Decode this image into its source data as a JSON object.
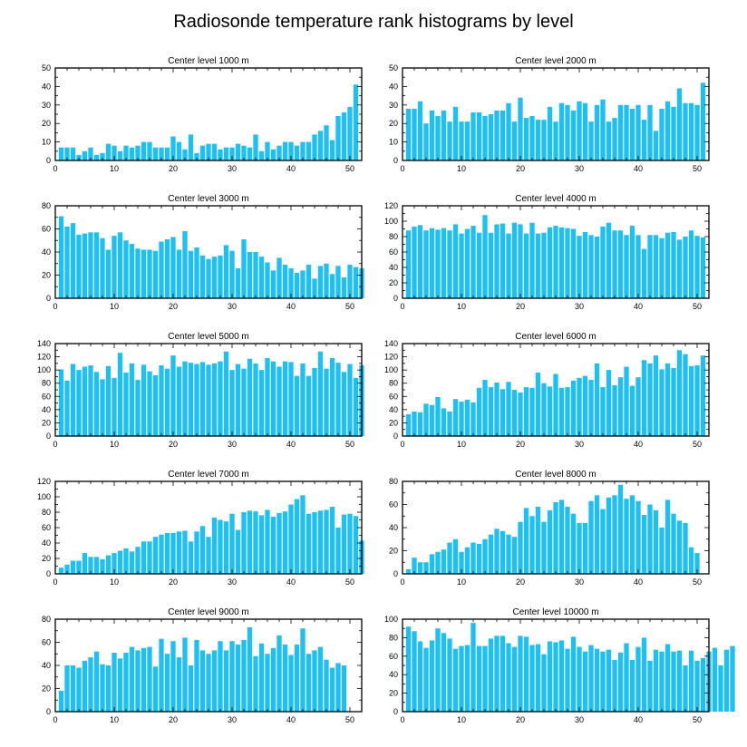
{
  "figure_title": "Radiosonde temperature rank histograms by level",
  "colors": {
    "bar": "#1cc0f5",
    "axis": "#000000",
    "background": "#ffffff"
  },
  "chart_data": [
    {
      "type": "bar",
      "title": "Center level 1000 m",
      "xlim": [
        0,
        52
      ],
      "ylim": [
        0,
        50
      ],
      "xticks": [
        0,
        10,
        20,
        30,
        40,
        50
      ],
      "yticks": [
        0,
        10,
        20,
        30,
        40,
        50
      ],
      "values": [
        7,
        7,
        7,
        3,
        5,
        7,
        3,
        4,
        9,
        8,
        5,
        8,
        7,
        8,
        10,
        10,
        7,
        7,
        7,
        13,
        10,
        6,
        14,
        4,
        8,
        9,
        9,
        6,
        7,
        7,
        9,
        8,
        7,
        14,
        5,
        10,
        6,
        8,
        10,
        10,
        8,
        10,
        10,
        14,
        16,
        19,
        11,
        24,
        26,
        29,
        41
      ]
    },
    {
      "type": "bar",
      "title": "Center level 2000 m",
      "xlim": [
        0,
        52
      ],
      "ylim": [
        0,
        50
      ],
      "xticks": [
        0,
        10,
        20,
        30,
        40,
        50
      ],
      "yticks": [
        0,
        10,
        20,
        30,
        40,
        50
      ],
      "values": [
        28,
        28,
        32,
        20,
        27,
        24,
        27,
        21,
        29,
        21,
        21,
        26,
        26,
        24,
        25,
        27,
        27,
        31,
        21,
        34,
        23,
        24,
        22,
        22,
        29,
        21,
        31,
        30,
        27,
        32,
        31,
        21,
        30,
        33,
        21,
        23,
        30,
        30,
        28,
        30,
        22,
        30,
        16,
        28,
        32,
        29,
        39,
        31,
        31,
        30,
        42
      ]
    },
    {
      "type": "bar",
      "title": "Center level 3000 m",
      "xlim": [
        0,
        52
      ],
      "ylim": [
        0,
        80
      ],
      "xticks": [
        0,
        10,
        20,
        30,
        40,
        50
      ],
      "yticks": [
        0,
        20,
        40,
        60,
        80
      ],
      "values": [
        71,
        62,
        65,
        55,
        56,
        57,
        57,
        52,
        42,
        54,
        57,
        50,
        47,
        43,
        42,
        42,
        41,
        49,
        51,
        53,
        42,
        58,
        41,
        44,
        37,
        34,
        36,
        37,
        46,
        41,
        26,
        51,
        40,
        40,
        36,
        31,
        24,
        35,
        29,
        26,
        22,
        24,
        29,
        17,
        28,
        30,
        21,
        28,
        18,
        29,
        27,
        26
      ]
    },
    {
      "type": "bar",
      "title": "Center level 4000 m",
      "xlim": [
        0,
        52
      ],
      "ylim": [
        0,
        120
      ],
      "xticks": [
        0,
        10,
        20,
        30,
        40,
        50
      ],
      "yticks": [
        0,
        20,
        40,
        60,
        80,
        100,
        120
      ],
      "values": [
        88,
        93,
        95,
        88,
        91,
        89,
        91,
        88,
        96,
        84,
        90,
        94,
        85,
        108,
        85,
        96,
        97,
        84,
        98,
        96,
        84,
        98,
        84,
        85,
        92,
        94,
        92,
        91,
        90,
        81,
        86,
        82,
        80,
        93,
        98,
        88,
        88,
        82,
        94,
        82,
        64,
        82,
        82,
        78,
        85,
        86,
        76,
        80,
        88,
        81,
        79
      ]
    },
    {
      "type": "bar",
      "title": "Center level 5000 m",
      "xlim": [
        0,
        52
      ],
      "ylim": [
        0,
        140
      ],
      "xticks": [
        0,
        10,
        20,
        30,
        40,
        50
      ],
      "yticks": [
        0,
        20,
        40,
        60,
        80,
        100,
        120,
        140
      ],
      "values": [
        101,
        84,
        109,
        100,
        105,
        107,
        97,
        86,
        106,
        88,
        126,
        96,
        110,
        85,
        108,
        98,
        92,
        107,
        102,
        122,
        105,
        113,
        111,
        109,
        112,
        108,
        110,
        113,
        128,
        100,
        109,
        102,
        117,
        110,
        100,
        118,
        113,
        105,
        113,
        112,
        91,
        110,
        91,
        103,
        128,
        102,
        118,
        111,
        97,
        109,
        88,
        107
      ]
    },
    {
      "type": "bar",
      "title": "Center level 6000 m",
      "xlim": [
        0,
        52
      ],
      "ylim": [
        0,
        140
      ],
      "xticks": [
        0,
        10,
        20,
        30,
        40,
        50
      ],
      "yticks": [
        0,
        20,
        40,
        60,
        80,
        100,
        120,
        140
      ],
      "values": [
        33,
        37,
        36,
        49,
        47,
        59,
        42,
        37,
        56,
        52,
        55,
        51,
        73,
        85,
        74,
        81,
        71,
        82,
        70,
        66,
        74,
        73,
        96,
        80,
        75,
        94,
        73,
        74,
        84,
        88,
        91,
        85,
        110,
        74,
        100,
        77,
        89,
        105,
        76,
        89,
        115,
        110,
        122,
        101,
        110,
        103,
        130,
        124,
        106,
        107,
        122
      ]
    },
    {
      "type": "bar",
      "title": "Center level 7000 m",
      "xlim": [
        0,
        52
      ],
      "ylim": [
        0,
        120
      ],
      "xticks": [
        0,
        10,
        20,
        30,
        40,
        50
      ],
      "yticks": [
        0,
        20,
        40,
        60,
        80,
        100,
        120
      ],
      "values": [
        8,
        12,
        17,
        17,
        27,
        22,
        22,
        19,
        24,
        27,
        30,
        33,
        29,
        35,
        42,
        42,
        48,
        51,
        53,
        53,
        55,
        56,
        42,
        55,
        62,
        48,
        73,
        70,
        68,
        78,
        57,
        80,
        82,
        81,
        76,
        83,
        74,
        79,
        81,
        90,
        97,
        102,
        78,
        80,
        82,
        83,
        87,
        60,
        77,
        78,
        75,
        43
      ]
    },
    {
      "type": "bar",
      "title": "Center level 8000 m",
      "xlim": [
        0,
        52
      ],
      "ylim": [
        0,
        80
      ],
      "xticks": [
        0,
        10,
        20,
        30,
        40,
        50
      ],
      "yticks": [
        0,
        20,
        40,
        60,
        80
      ],
      "values": [
        4,
        14,
        10,
        10,
        17,
        19,
        21,
        27,
        30,
        19,
        23,
        27,
        26,
        30,
        34,
        39,
        37,
        34,
        32,
        45,
        57,
        50,
        58,
        45,
        55,
        62,
        64,
        58,
        52,
        44,
        44,
        63,
        68,
        56,
        66,
        68,
        77,
        65,
        68,
        63,
        51,
        60,
        55,
        40,
        64,
        52,
        46,
        44,
        23,
        18
      ]
    },
    {
      "type": "bar",
      "title": "Center level 9000 m",
      "xlim": [
        0,
        52
      ],
      "ylim": [
        0,
        80
      ],
      "xticks": [
        0,
        10,
        20,
        30,
        40,
        50
      ],
      "yticks": [
        0,
        20,
        40,
        60,
        80
      ],
      "values": [
        18,
        40,
        40,
        38,
        44,
        47,
        52,
        41,
        40,
        51,
        46,
        51,
        56,
        53,
        55,
        56,
        39,
        63,
        50,
        61,
        47,
        64,
        40,
        62,
        53,
        50,
        53,
        61,
        53,
        61,
        58,
        62,
        73,
        48,
        59,
        50,
        55,
        66,
        58,
        49,
        58,
        72,
        50,
        53,
        56,
        45,
        38,
        42,
        40
      ]
    },
    {
      "type": "bar",
      "title": "Center level 10000 m",
      "xlim": [
        0,
        52
      ],
      "ylim": [
        0,
        100
      ],
      "xticks": [
        0,
        10,
        20,
        30,
        40,
        50
      ],
      "yticks": [
        0,
        20,
        40,
        60,
        80,
        100
      ],
      "values": [
        92,
        87,
        76,
        69,
        77,
        90,
        85,
        79,
        68,
        71,
        72,
        96,
        71,
        71,
        79,
        82,
        82,
        74,
        70,
        82,
        81,
        72,
        73,
        62,
        76,
        75,
        77,
        68,
        81,
        70,
        65,
        72,
        68,
        65,
        67,
        56,
        64,
        74,
        56,
        70,
        80,
        55,
        67,
        65,
        73,
        65,
        66,
        50,
        66,
        55,
        58,
        65,
        69,
        50,
        67,
        71
      ]
    }
  ]
}
